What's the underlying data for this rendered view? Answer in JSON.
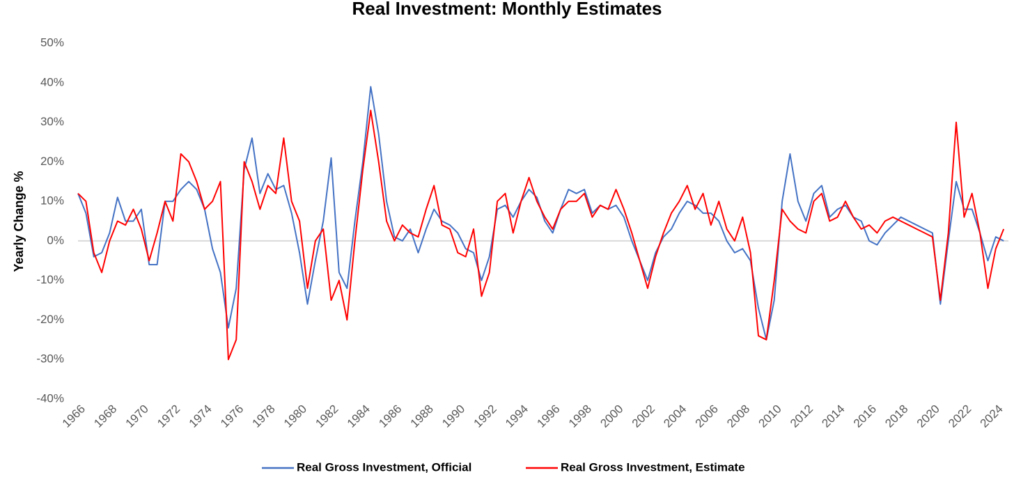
{
  "chart_data": {
    "type": "line",
    "title": "Real Investment: Monthly Estimates",
    "y_label": "Yearly Change %",
    "x": [
      1966.0,
      1966.5,
      1967.0,
      1967.5,
      1968.0,
      1968.5,
      1969.0,
      1969.5,
      1970.0,
      1970.5,
      1971.0,
      1971.5,
      1972.0,
      1972.5,
      1973.0,
      1973.5,
      1974.0,
      1974.5,
      1975.0,
      1975.5,
      1976.0,
      1976.5,
      1977.0,
      1977.5,
      1978.0,
      1978.5,
      1979.0,
      1979.5,
      1980.0,
      1980.5,
      1981.0,
      1981.5,
      1982.0,
      1982.5,
      1983.0,
      1983.5,
      1984.0,
      1984.5,
      1985.0,
      1985.5,
      1986.0,
      1986.5,
      1987.0,
      1987.5,
      1988.0,
      1988.5,
      1989.0,
      1989.5,
      1990.0,
      1990.5,
      1991.0,
      1991.5,
      1992.0,
      1992.5,
      1993.0,
      1993.5,
      1994.0,
      1994.5,
      1995.0,
      1995.5,
      1996.0,
      1996.5,
      1997.0,
      1997.5,
      1998.0,
      1998.5,
      1999.0,
      1999.5,
      2000.0,
      2000.5,
      2001.0,
      2001.5,
      2002.0,
      2002.5,
      2003.0,
      2003.5,
      2004.0,
      2004.5,
      2005.0,
      2005.5,
      2006.0,
      2006.5,
      2007.0,
      2007.5,
      2008.0,
      2008.5,
      2009.0,
      2009.5,
      2010.0,
      2010.5,
      2011.0,
      2011.5,
      2012.0,
      2012.5,
      2013.0,
      2013.5,
      2014.0,
      2014.5,
      2015.0,
      2015.5,
      2016.0,
      2016.5,
      2017.0,
      2017.5,
      2018.0,
      2018.5,
      2019.0,
      2019.5,
      2020.0,
      2020.5,
      2021.0,
      2021.5,
      2022.0,
      2022.5,
      2023.0,
      2023.5,
      2024.0,
      2024.5
    ],
    "series": [
      {
        "name": "Real Gross Investment, Official",
        "color": "#4472c4",
        "values": [
          12,
          7,
          -4,
          -3,
          2,
          11,
          5,
          5,
          8,
          -6,
          -6,
          10,
          10,
          13,
          15,
          13,
          8,
          -2,
          -8,
          -22,
          -12,
          18,
          26,
          12,
          17,
          13,
          14,
          7,
          -3,
          -16,
          -5,
          5,
          21,
          -8,
          -12,
          5,
          20,
          39,
          27,
          10,
          1,
          0,
          3,
          -3,
          3,
          8,
          5,
          4,
          2,
          -2,
          -3,
          -10,
          -4,
          8,
          9,
          6,
          10,
          13,
          11,
          5,
          2,
          8,
          13,
          12,
          13,
          7,
          9,
          8,
          9,
          6,
          0,
          -5,
          -10,
          -3,
          1,
          3,
          7,
          10,
          9,
          7,
          7,
          5,
          0,
          -3,
          -2,
          -5,
          -17,
          -25,
          -15,
          10,
          22,
          10,
          5,
          12,
          14,
          6,
          8,
          9,
          6,
          5,
          0,
          -1,
          2,
          4,
          6,
          5,
          4,
          3,
          2,
          -16,
          0,
          15,
          8,
          8,
          2,
          -5,
          1,
          0
        ]
      },
      {
        "name": "Real Gross Investment, Estimate",
        "color": "#ff0000",
        "values": [
          12,
          10,
          -3,
          -8,
          0,
          5,
          4,
          8,
          3,
          -5,
          2,
          10,
          5,
          22,
          20,
          15,
          8,
          10,
          15,
          -30,
          -25,
          20,
          15,
          8,
          14,
          12,
          26,
          10,
          5,
          -12,
          0,
          3,
          -15,
          -10,
          -20,
          0,
          18,
          33,
          20,
          5,
          0,
          4,
          2,
          1,
          8,
          14,
          4,
          3,
          -3,
          -4,
          3,
          -14,
          -8,
          10,
          12,
          2,
          10,
          16,
          10,
          6,
          3,
          8,
          10,
          10,
          12,
          6,
          9,
          8,
          13,
          8,
          2,
          -5,
          -12,
          -4,
          2,
          7,
          10,
          14,
          8,
          12,
          4,
          10,
          3,
          0,
          6,
          -3,
          -24,
          -25,
          -10,
          8,
          5,
          3,
          2,
          10,
          12,
          5,
          6,
          10,
          6,
          3,
          4,
          2,
          5,
          6,
          5,
          4,
          3,
          2,
          1,
          -15,
          2,
          30,
          6,
          12,
          2,
          -12,
          -2,
          3
        ]
      }
    ],
    "xlim": [
      1966,
      2024.8
    ],
    "xticks": [
      1966,
      1968,
      1970,
      1972,
      1974,
      1976,
      1978,
      1980,
      1982,
      1984,
      1986,
      1988,
      1990,
      1992,
      1994,
      1996,
      1998,
      2000,
      2002,
      2004,
      2006,
      2008,
      2010,
      2012,
      2014,
      2016,
      2018,
      2020,
      2022,
      2024
    ],
    "ylim": [
      -40,
      50
    ],
    "yticks": [
      {
        "value": -40,
        "label": "-40%"
      },
      {
        "value": -30,
        "label": "-30%"
      },
      {
        "value": -20,
        "label": "-20%"
      },
      {
        "value": -10,
        "label": "-10%"
      },
      {
        "value": 0,
        "label": "0%"
      },
      {
        "value": 10,
        "label": "10%"
      },
      {
        "value": 20,
        "label": "20%"
      },
      {
        "value": 30,
        "label": "30%"
      },
      {
        "value": 40,
        "label": "40%"
      },
      {
        "value": 50,
        "label": "50%"
      }
    ],
    "legend": "bottom"
  }
}
